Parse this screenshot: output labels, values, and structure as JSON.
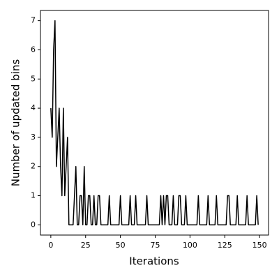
{
  "chart_data": {
    "type": "line",
    "x_label": "Iterations",
    "y_label": "Number of updated bins",
    "x": [
      0,
      1,
      2,
      3,
      4,
      5,
      6,
      7,
      8,
      9,
      10,
      11,
      12,
      13,
      14,
      15,
      16,
      17,
      18,
      19,
      20,
      21,
      22,
      23,
      24,
      25,
      26,
      27,
      28,
      29,
      30,
      31,
      32,
      33,
      34,
      35,
      36,
      37,
      38,
      39,
      40,
      41,
      42,
      43,
      44,
      45,
      46,
      47,
      48,
      49,
      50,
      51,
      52,
      53,
      54,
      55,
      56,
      57,
      58,
      59,
      60,
      61,
      62,
      63,
      64,
      65,
      66,
      67,
      68,
      69,
      70,
      71,
      72,
      73,
      74,
      75,
      76,
      77,
      78,
      79,
      80,
      81,
      82,
      83,
      84,
      85,
      86,
      87,
      88,
      89,
      90,
      91,
      92,
      93,
      94,
      95,
      96,
      97,
      98,
      99,
      100,
      101,
      102,
      103,
      104,
      105,
      106,
      107,
      108,
      109,
      110,
      111,
      112,
      113,
      114,
      115,
      116,
      117,
      118,
      119,
      120,
      121,
      122,
      123,
      124,
      125,
      126,
      127,
      128,
      129,
      130,
      131,
      132,
      133,
      134,
      135,
      136,
      137,
      138,
      139,
      140,
      141,
      142,
      143,
      144,
      145,
      146,
      147,
      148,
      149
    ],
    "values": [
      4,
      3,
      6,
      7,
      2,
      3,
      4,
      2,
      1,
      4,
      1,
      2,
      3,
      0,
      0,
      0,
      0,
      1,
      2,
      0,
      0,
      1,
      1,
      0,
      2,
      0,
      0,
      1,
      1,
      0,
      0,
      1,
      0,
      0,
      1,
      1,
      0,
      0,
      0,
      0,
      0,
      0,
      1,
      0,
      0,
      0,
      0,
      0,
      0,
      0,
      1,
      0,
      0,
      0,
      0,
      0,
      0,
      1,
      0,
      0,
      0,
      1,
      0,
      0,
      0,
      0,
      0,
      0,
      0,
      1,
      0,
      0,
      0,
      0,
      0,
      0,
      0,
      0,
      0,
      1,
      0,
      1,
      0,
      1,
      1,
      0,
      0,
      0,
      1,
      0,
      0,
      0,
      1,
      1,
      0,
      0,
      0,
      1,
      0,
      0,
      0,
      0,
      0,
      0,
      0,
      0,
      1,
      0,
      0,
      0,
      0,
      0,
      0,
      1,
      0,
      0,
      0,
      0,
      0,
      1,
      0,
      0,
      0,
      0,
      0,
      0,
      0,
      1,
      1,
      0,
      0,
      0,
      0,
      0,
      1,
      0,
      0,
      0,
      0,
      0,
      0,
      1,
      0,
      0,
      0,
      0,
      0,
      0,
      1,
      0
    ],
    "color": "#000000",
    "xlim": [
      -7.45,
      156.45
    ],
    "xticks": [
      0,
      25,
      50,
      75,
      100,
      125,
      150
    ],
    "ylim": [
      -0.35,
      7.35
    ],
    "yticks": [
      0,
      1,
      2,
      3,
      4,
      5,
      6,
      7
    ],
    "grid": false
  }
}
